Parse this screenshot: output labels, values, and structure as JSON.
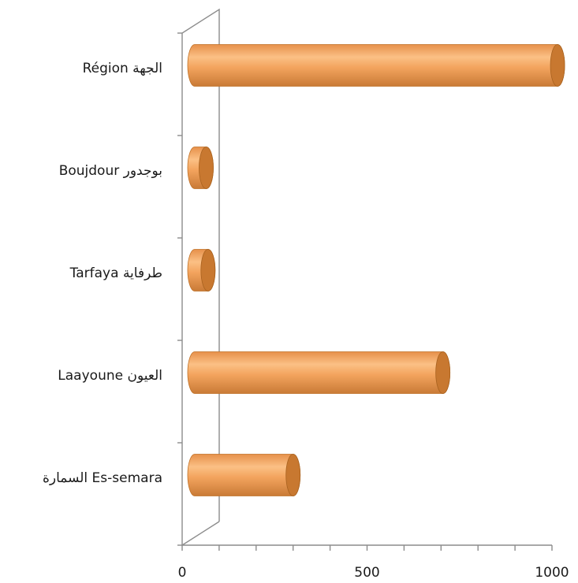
{
  "chart_data": {
    "type": "bar",
    "orientation": "horizontal",
    "style": "3d-cylinder",
    "bar_color": "#F0A050",
    "bar_end_color": "#C87830",
    "categories": [
      "السمارة   Es-semara",
      "Laayoune العيون",
      "Tarfaya  طرفاية",
      "Boujdour بوجدور",
      "Région الجهة"
    ],
    "values": [
      300,
      705,
      70,
      65,
      1015
    ],
    "x_ticks": [
      "0",
      "500",
      "1000"
    ],
    "xlim": [
      0,
      1000
    ],
    "title": "",
    "xlabel": "",
    "ylabel": "",
    "grid": false,
    "legend": "none"
  }
}
